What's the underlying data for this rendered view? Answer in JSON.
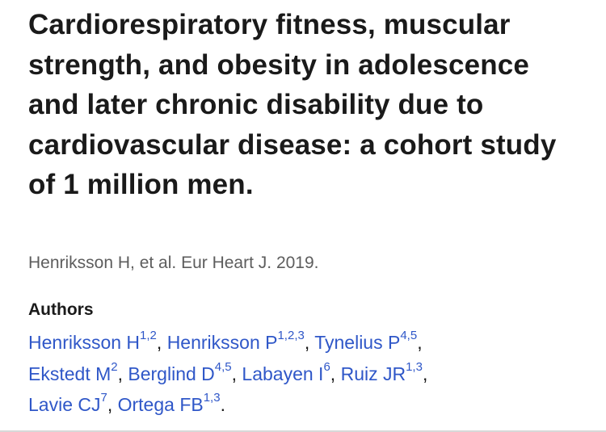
{
  "article": {
    "title": "Cardiorespiratory fitness, muscular strength, and obesity in adolescence and later chronic disability due to cardiovascular disease: a cohort study of 1 million men.",
    "citation": "Henriksson H, et al. Eur Heart J. 2019."
  },
  "authors": {
    "heading": "Authors",
    "separator": ", ",
    "terminator": ".",
    "list": [
      {
        "name": "Henriksson H",
        "affiliations": "1,2"
      },
      {
        "name": "Henriksson P",
        "affiliations": "1,2,3"
      },
      {
        "name": "Tynelius P",
        "affiliations": "4,5"
      },
      {
        "name": "Ekstedt M",
        "affiliations": "2"
      },
      {
        "name": "Berglind D",
        "affiliations": "4,5"
      },
      {
        "name": "Labayen I",
        "affiliations": "6"
      },
      {
        "name": "Ruiz JR",
        "affiliations": "1,3"
      },
      {
        "name": "Lavie CJ",
        "affiliations": "7"
      },
      {
        "name": "Ortega FB",
        "affiliations": "1,3"
      }
    ]
  },
  "colors": {
    "link": "#2f57c8",
    "text": "#1a1a1a",
    "muted": "#5d5d5d"
  }
}
